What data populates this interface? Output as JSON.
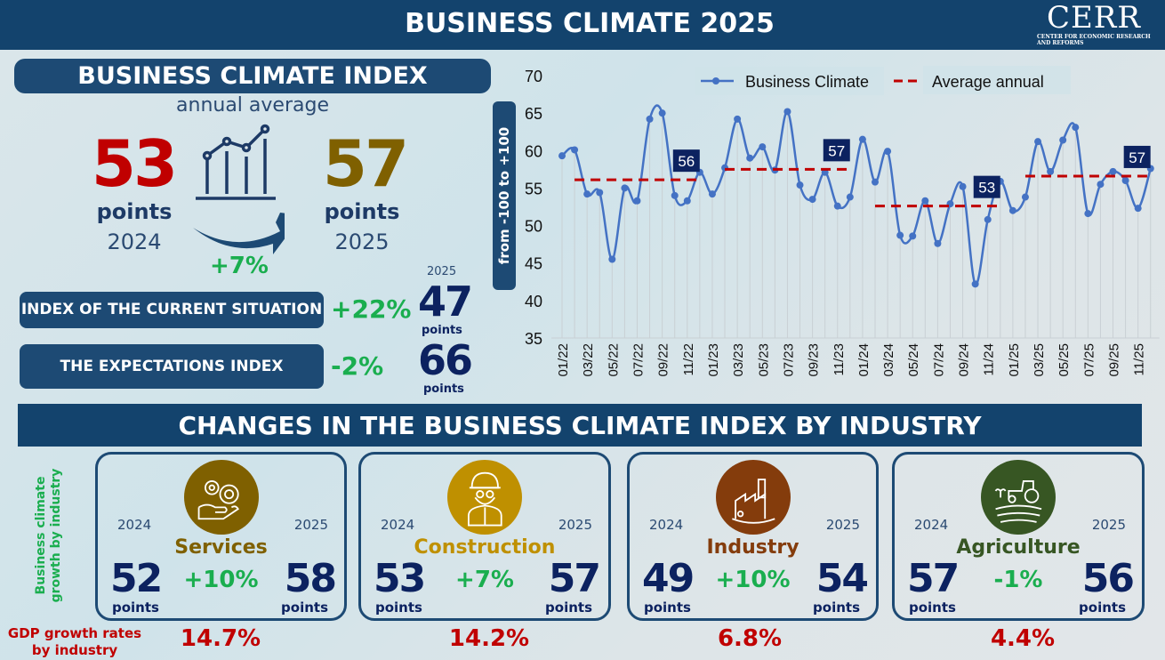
{
  "header": {
    "title": "BUSINESS CLIMATE 2025",
    "logo_text": "CERR",
    "logo_subtitle": "CENTER FOR ECONOMIC RESEARCH AND REFORMS"
  },
  "summary": {
    "title": "BUSINESS CLIMATE INDEX",
    "subtitle": "annual average",
    "prev_value": "53",
    "prev_unit": "points",
    "prev_year": "2024",
    "curr_value": "57",
    "curr_unit": "points",
    "curr_year": "2025",
    "change": "+7%",
    "sub_year": "2025",
    "current_situation": {
      "label": "INDEX OF THE CURRENT SITUATION",
      "change": "+22%",
      "value": "47",
      "unit": "points"
    },
    "expectations": {
      "label": "THE EXPECTATIONS INDEX",
      "change": "-2%",
      "value": "66",
      "unit": "points"
    },
    "colors": {
      "prev": "#c00000",
      "curr": "#7f6000",
      "positive": "#1aae4f"
    }
  },
  "chart_data": {
    "type": "line",
    "ylabel": "from -100 to +100",
    "ylim": [
      35,
      70
    ],
    "yticks": [
      35,
      40,
      45,
      50,
      55,
      60,
      65,
      70
    ],
    "legend_position": "top",
    "x": [
      "01/22",
      "02/22",
      "03/22",
      "04/22",
      "05/22",
      "06/22",
      "07/22",
      "08/22",
      "09/22",
      "10/22",
      "11/22",
      "12/22",
      "01/23",
      "02/23",
      "03/23",
      "04/23",
      "05/23",
      "06/23",
      "07/23",
      "08/23",
      "09/23",
      "10/23",
      "11/23",
      "12/23",
      "01/24",
      "02/24",
      "03/24",
      "04/24",
      "05/24",
      "06/24",
      "07/24",
      "08/24",
      "09/24",
      "10/24",
      "11/24",
      "12/24",
      "01/25",
      "02/25",
      "03/25",
      "04/25",
      "05/25",
      "06/25",
      "07/25",
      "08/25",
      "09/25",
      "10/25",
      "11/25",
      "12/25"
    ],
    "xtick_labels": [
      "01/22",
      "03/22",
      "05/22",
      "07/22",
      "09/22",
      "11/22",
      "01/23",
      "03/23",
      "05/23",
      "07/23",
      "09/23",
      "11/23",
      "01/24",
      "03/24",
      "05/24",
      "07/24",
      "09/24",
      "11/24",
      "01/25",
      "03/25",
      "05/25",
      "07/25",
      "09/25",
      "11/25"
    ],
    "series": [
      {
        "name": "Business Climate",
        "color": "#4472c4",
        "values": [
          59.3,
          60.1,
          54.2,
          54.4,
          45.5,
          55.0,
          53.3,
          64.2,
          65.0,
          54.0,
          53.3,
          57.1,
          54.2,
          57.7,
          64.2,
          59.0,
          60.5,
          57.4,
          65.2,
          55.4,
          53.5,
          57.1,
          52.6,
          53.8,
          61.5,
          55.8,
          59.9,
          48.7,
          48.6,
          53.3,
          47.6,
          52.9,
          55.2,
          42.2,
          50.8,
          55.9,
          52.0,
          53.8,
          61.2,
          57.2,
          61.4,
          63.1,
          51.6,
          55.5,
          57.2,
          56.0,
          52.3,
          57.6
        ]
      },
      {
        "name": "Average annual",
        "color": "#c00000",
        "segments": [
          {
            "year": "2022",
            "value": 56.1,
            "label": "56"
          },
          {
            "year": "2023",
            "value": 57.5,
            "label": "57"
          },
          {
            "year": "2024",
            "value": 52.6,
            "label": "53"
          },
          {
            "year": "2025",
            "value": 56.6,
            "label": "57"
          }
        ]
      }
    ]
  },
  "industries": {
    "title": "CHANGES IN THE BUSINESS CLIMATE INDEX BY INDUSTRY",
    "side_label_1": "Business climate",
    "side_label_2": "growth by industry",
    "gdp_label_1": "GDP growth rates",
    "gdp_label_2": "by industry",
    "items": [
      {
        "name": "Services",
        "icon": "gears-hand-icon",
        "color": "#7f6000",
        "y1": "2024",
        "y2": "2025",
        "v1": "52",
        "v2": "58",
        "unit": "points",
        "change": "+10%",
        "gdp": "14.7%"
      },
      {
        "name": "Construction",
        "icon": "worker-helmet-icon",
        "color": "#bf9000",
        "y1": "2024",
        "y2": "2025",
        "v1": "53",
        "v2": "57",
        "unit": "points",
        "change": "+7%",
        "gdp": "14.2%"
      },
      {
        "name": "Industry",
        "icon": "factory-icon",
        "color": "#843c0c",
        "y1": "2024",
        "y2": "2025",
        "v1": "49",
        "v2": "54",
        "unit": "points",
        "change": "+10%",
        "gdp": "6.8%"
      },
      {
        "name": "Agriculture",
        "icon": "tractor-field-icon",
        "color": "#375623",
        "y1": "2024",
        "y2": "2025",
        "v1": "57",
        "v2": "56",
        "unit": "points",
        "change": "-1%",
        "gdp": "4.4%"
      }
    ]
  }
}
